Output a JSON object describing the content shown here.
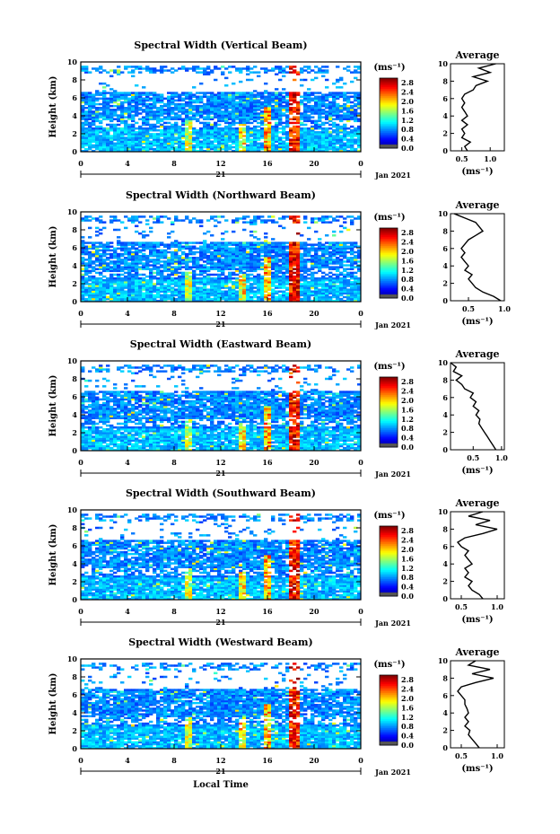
{
  "chart_data": [
    {
      "type": "heatmap",
      "title": "Spectral Width (Vertical Beam)",
      "ylabel": "Height (km)",
      "xlim": [
        0,
        24
      ],
      "ylim": [
        0,
        10
      ],
      "x_ticks": [
        "0",
        "4",
        "8",
        "12",
        "16",
        "20",
        "0"
      ],
      "y_ticks": [
        "0",
        "2",
        "4",
        "6",
        "8",
        "10"
      ],
      "day_label": "21",
      "month_label": "Jan 2021",
      "colorbar": {
        "unit": "(ms⁻¹)",
        "ticks": [
          "0.0",
          "0.4",
          "0.8",
          "1.2",
          "1.6",
          "2.0",
          "2.4",
          "2.8"
        ],
        "range": [
          0,
          3
        ]
      },
      "average": {
        "title": "Average",
        "xlabel": "(ms⁻¹)",
        "x_ticks": [
          "0.5",
          "1.0"
        ],
        "y_ticks": [
          "0",
          "2",
          "4",
          "6",
          "8",
          "10"
        ],
        "xlim": [
          0.3,
          1.25
        ],
        "height": [
          0,
          0.5,
          1,
          1.5,
          2,
          2.5,
          3,
          3.5,
          4,
          4.5,
          5,
          5.5,
          6,
          6.5,
          7,
          7.5,
          8,
          8.5,
          9,
          9.5,
          10
        ],
        "value": [
          0.6,
          0.55,
          0.65,
          0.5,
          0.55,
          0.5,
          0.6,
          0.5,
          0.6,
          0.55,
          0.5,
          0.55,
          0.5,
          0.55,
          0.7,
          0.75,
          0.95,
          0.7,
          1.0,
          0.8,
          1.1
        ]
      }
    },
    {
      "type": "heatmap",
      "title": "Spectral Width (Northward Beam)",
      "ylabel": "Height (km)",
      "xlim": [
        0,
        24
      ],
      "ylim": [
        0,
        10
      ],
      "x_ticks": [
        "0",
        "4",
        "8",
        "12",
        "16",
        "20",
        "0"
      ],
      "y_ticks": [
        "0",
        "2",
        "4",
        "6",
        "8",
        "10"
      ],
      "day_label": "21",
      "month_label": "Jan 2021",
      "colorbar": {
        "unit": "(ms⁻¹)",
        "ticks": [
          "0.0",
          "0.4",
          "0.8",
          "1.2",
          "1.6",
          "2.0",
          "2.4",
          "2.8"
        ],
        "range": [
          0,
          3
        ]
      },
      "average": {
        "title": "Average",
        "xlabel": "(ms⁻¹)",
        "x_ticks": [
          "0.5",
          "1.0"
        ],
        "y_ticks": [
          "0",
          "2",
          "4",
          "6",
          "8",
          "10"
        ],
        "xlim": [
          0.25,
          1.0
        ],
        "height": [
          0,
          0.5,
          1,
          1.5,
          2,
          2.5,
          3,
          3.5,
          4,
          4.5,
          5,
          5.5,
          6,
          6.5,
          7,
          7.5,
          8,
          8.5,
          9,
          9.5,
          10
        ],
        "value": [
          0.95,
          0.85,
          0.7,
          0.6,
          0.55,
          0.5,
          0.55,
          0.45,
          0.5,
          0.45,
          0.4,
          0.45,
          0.4,
          0.45,
          0.5,
          0.6,
          0.7,
          0.65,
          0.6,
          0.45,
          0.3
        ]
      }
    },
    {
      "type": "heatmap",
      "title": "Spectral Width (Eastward Beam)",
      "ylabel": "Height (km)",
      "xlim": [
        0,
        24
      ],
      "ylim": [
        0,
        10
      ],
      "x_ticks": [
        "0",
        "4",
        "8",
        "12",
        "16",
        "20",
        "0"
      ],
      "y_ticks": [
        "0",
        "2",
        "4",
        "6",
        "8",
        "10"
      ],
      "day_label": "21",
      "month_label": "Jan 2021",
      "colorbar": {
        "unit": "(ms⁻¹)",
        "ticks": [
          "0.0",
          "0.4",
          "0.8",
          "1.2",
          "1.6",
          "2.0",
          "2.4",
          "2.8"
        ],
        "range": [
          0,
          3
        ]
      },
      "average": {
        "title": "Average",
        "xlabel": "(ms⁻¹)",
        "x_ticks": [
          "0.5",
          "1.0"
        ],
        "y_ticks": [
          "0",
          "2",
          "4",
          "6",
          "8",
          "10"
        ],
        "xlim": [
          0.1,
          1.05
        ],
        "height": [
          0,
          0.5,
          1,
          1.5,
          2,
          2.5,
          3,
          3.5,
          4,
          4.5,
          5,
          5.5,
          6,
          6.5,
          7,
          7.5,
          8,
          8.5,
          9,
          9.5,
          10
        ],
        "value": [
          0.9,
          0.85,
          0.8,
          0.75,
          0.7,
          0.65,
          0.6,
          0.62,
          0.55,
          0.6,
          0.5,
          0.55,
          0.45,
          0.5,
          0.35,
          0.3,
          0.2,
          0.3,
          0.15,
          0.2,
          0.1
        ]
      }
    },
    {
      "type": "heatmap",
      "title": "Spectral Width (Southward Beam)",
      "ylabel": "Height (km)",
      "xlim": [
        0,
        24
      ],
      "ylim": [
        0,
        10
      ],
      "x_ticks": [
        "0",
        "4",
        "8",
        "12",
        "16",
        "20",
        "0"
      ],
      "y_ticks": [
        "0",
        "2",
        "4",
        "6",
        "8",
        "10"
      ],
      "day_label": "21",
      "month_label": "Jan 2021",
      "colorbar": {
        "unit": "(ms⁻¹)",
        "ticks": [
          "0.0",
          "0.4",
          "0.8",
          "1.2",
          "1.6",
          "2.0",
          "2.4",
          "2.8"
        ],
        "range": [
          0,
          3
        ]
      },
      "average": {
        "title": "Average",
        "xlabel": "(ms⁻¹)",
        "x_ticks": [
          "0.5",
          "1.0"
        ],
        "y_ticks": [
          "0",
          "2",
          "4",
          "6",
          "8",
          "10"
        ],
        "xlim": [
          0.35,
          1.1
        ],
        "height": [
          0,
          0.5,
          1,
          1.5,
          2,
          2.5,
          3,
          3.5,
          4,
          4.5,
          5,
          5.5,
          6,
          6.5,
          7,
          7.5,
          8,
          8.5,
          9,
          9.5,
          10
        ],
        "value": [
          0.8,
          0.75,
          0.65,
          0.6,
          0.65,
          0.55,
          0.6,
          0.55,
          0.65,
          0.6,
          0.55,
          0.6,
          0.5,
          0.45,
          0.55,
          0.8,
          1.0,
          0.7,
          0.9,
          0.6,
          0.8
        ]
      }
    },
    {
      "type": "heatmap",
      "title": "Spectral Width (Westward Beam)",
      "ylabel": "Height (km)",
      "xlabel": "Local Time",
      "xlim": [
        0,
        24
      ],
      "ylim": [
        0,
        10
      ],
      "x_ticks": [
        "0",
        "4",
        "8",
        "12",
        "16",
        "20",
        "0"
      ],
      "y_ticks": [
        "0",
        "2",
        "4",
        "6",
        "8",
        "10"
      ],
      "day_label": "21",
      "month_label": "Jan 2021",
      "colorbar": {
        "unit": "(ms⁻¹)",
        "ticks": [
          "0.0",
          "0.4",
          "0.8",
          "1.2",
          "1.6",
          "2.0",
          "2.4",
          "2.8"
        ],
        "range": [
          0,
          3
        ]
      },
      "average": {
        "title": "Average",
        "xlabel": "(ms⁻¹)",
        "x_ticks": [
          "0.5",
          "1.0"
        ],
        "y_ticks": [
          "0",
          "2",
          "4",
          "6",
          "8",
          "10"
        ],
        "xlim": [
          0.35,
          1.1
        ],
        "height": [
          0,
          0.5,
          1,
          1.5,
          2,
          2.5,
          3,
          3.5,
          4,
          4.5,
          5,
          5.5,
          6,
          6.5,
          7,
          7.5,
          8,
          8.5,
          9,
          9.5,
          10
        ],
        "value": [
          0.75,
          0.7,
          0.65,
          0.6,
          0.62,
          0.55,
          0.6,
          0.55,
          0.6,
          0.58,
          0.55,
          0.55,
          0.5,
          0.45,
          0.5,
          0.7,
          0.95,
          0.65,
          0.9,
          0.6,
          0.7
        ]
      }
    }
  ]
}
